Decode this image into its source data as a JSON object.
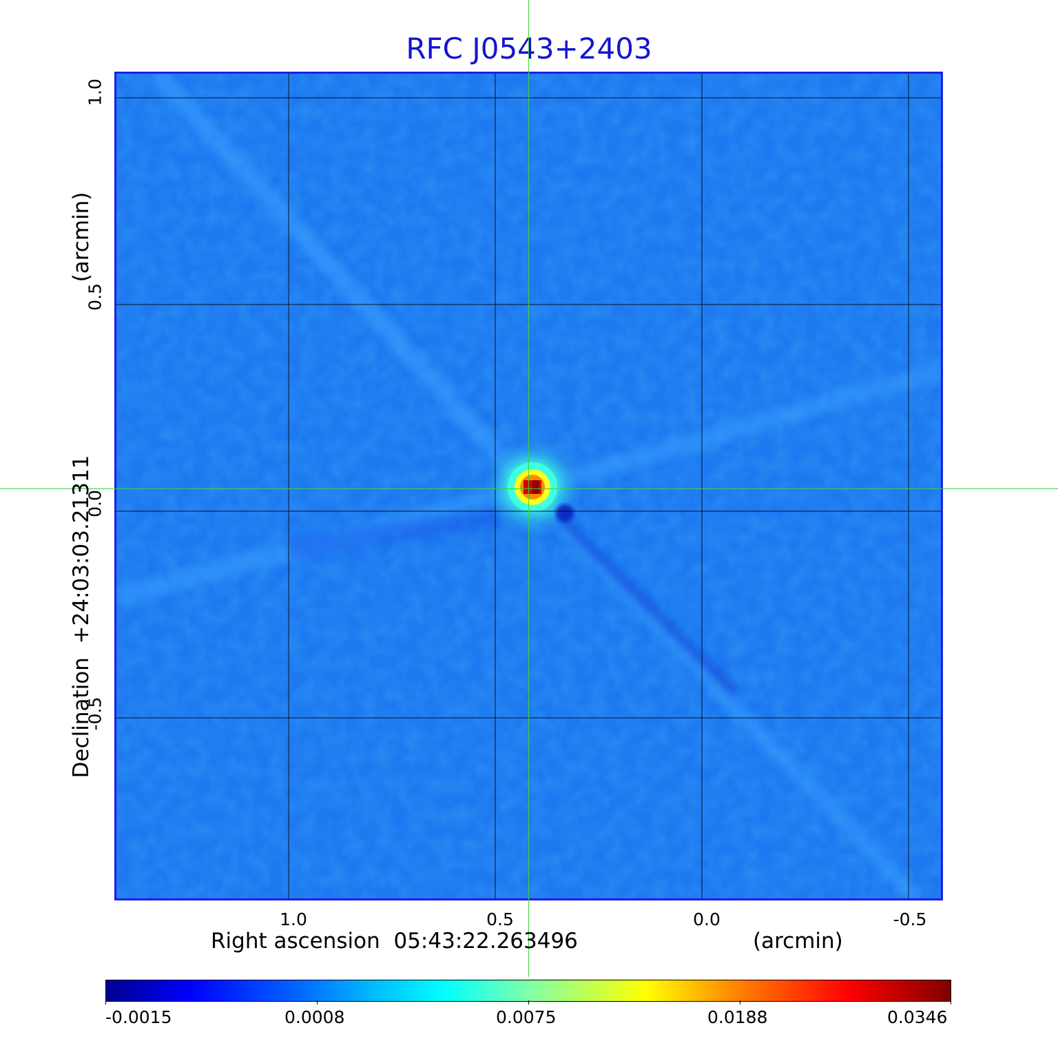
{
  "title": "RFC J0543+2403",
  "x_axis": {
    "label": "Right ascension  05:43:22.263496",
    "unit": "(arcmin)",
    "ticks": [
      "1.0",
      "0.5",
      "0.0",
      "-0.5"
    ]
  },
  "y_axis": {
    "label": "Declination  +24:03:03.21311",
    "unit": "(arcmin)",
    "ticks": [
      "1.0",
      "0.5",
      "0.0",
      "-0.5"
    ]
  },
  "colorbar": {
    "ticks": [
      "-0.0015",
      "0.0008",
      "0.0075",
      "0.0188",
      "0.0346"
    ],
    "colormap": "jet"
  },
  "colors": {
    "title": "#1414d2",
    "frame": "#1e1ee6",
    "crosshair": "#3cd23c",
    "background_field": "#1e78f0",
    "source_peak": "#c80000"
  },
  "source": {
    "name": "RFC J0543+2403",
    "ra_offset_arcmin": 0.42,
    "dec_offset_arcmin": 0.05
  }
}
